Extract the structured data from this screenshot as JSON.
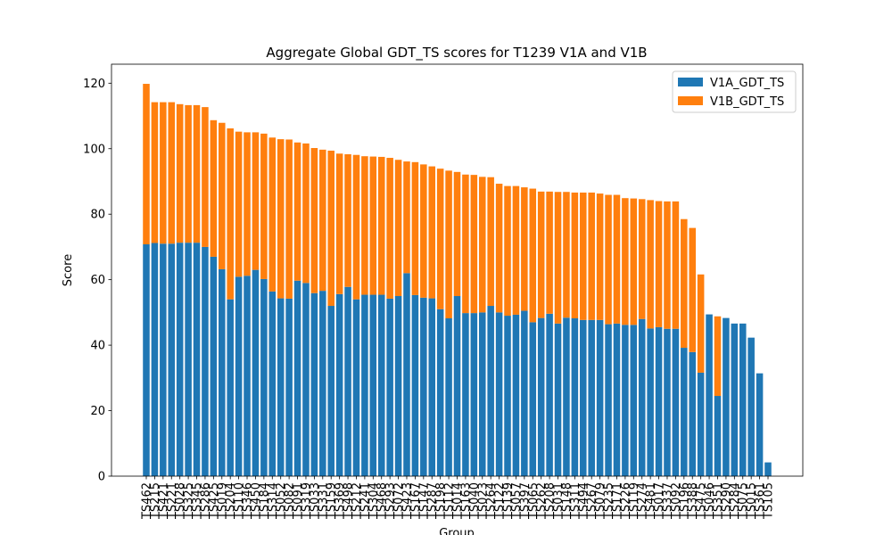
{
  "chart_data": {
    "type": "stacked_bar",
    "title": "Aggregate Global GDT_TS scores for T1239 V1A and V1B",
    "x_label": "Group",
    "y_label": "Score",
    "categories": [
      "TS462",
      "TS215",
      "TS421",
      "TS221",
      "TS028",
      "TS325",
      "TS345",
      "TS286",
      "TS425",
      "TS019",
      "TS204",
      "TS110",
      "TS346",
      "TS450",
      "TS184",
      "TS314",
      "TS052",
      "TS082",
      "TS091",
      "TS319",
      "TS033",
      "TS331",
      "TS159",
      "TS369",
      "TS498",
      "TS212",
      "TS241",
      "TS304",
      "TS468",
      "TS293",
      "TS072",
      "TS423",
      "TS167",
      "TS147",
      "TS287",
      "TS198",
      "TS112",
      "TS014",
      "TS163",
      "TS040",
      "TS023",
      "TS264",
      "TS122",
      "TS139",
      "TS057",
      "TS397",
      "TS065",
      "TS262",
      "TS208",
      "TS031",
      "TS148",
      "TS311",
      "TS494",
      "TS267",
      "TS079",
      "TS235",
      "TS171",
      "TS226",
      "TS119",
      "TS274",
      "TS481",
      "TS017",
      "TS337",
      "TS092",
      "TS196",
      "TS388",
      "TS475",
      "TS046",
      "TS351",
      "TS290",
      "TS284",
      "TS075",
      "TS015",
      "TS361",
      "TS105"
    ],
    "series": [
      {
        "name": "V1A_GDT_TS",
        "color": "#1f77b4",
        "values": [
          70.8,
          71.2,
          71.0,
          71.0,
          71.3,
          71.3,
          71.3,
          70.0,
          67.0,
          63.2,
          54.0,
          60.9,
          61.2,
          63.0,
          60.2,
          56.4,
          54.3,
          54.2,
          59.7,
          59.0,
          55.9,
          56.6,
          52.0,
          55.6,
          57.8,
          54.0,
          55.4,
          55.4,
          55.4,
          54.2,
          55.0,
          62.0,
          55.3,
          54.5,
          54.3,
          51.0,
          48.2,
          55.0,
          49.8,
          49.8,
          50.0,
          52.0,
          50.0,
          49.0,
          49.3,
          50.5,
          47.0,
          48.3,
          49.6,
          46.6,
          48.4,
          48.2,
          47.7,
          47.7,
          47.7,
          46.4,
          46.6,
          46.2,
          46.2,
          48.0,
          45.1,
          45.5,
          45.0,
          45.0,
          39.2,
          37.9,
          31.6,
          49.4,
          24.5,
          48.3,
          46.6,
          46.6,
          42.3,
          31.4,
          4.2
        ]
      },
      {
        "name": "V1B_GDT_TS",
        "color": "#ff7f0e",
        "values": [
          49.0,
          43.0,
          43.2,
          43.2,
          42.3,
          42.0,
          42.0,
          42.7,
          41.7,
          44.7,
          52.2,
          44.3,
          43.8,
          42.0,
          44.4,
          47.0,
          48.6,
          48.6,
          42.2,
          42.6,
          44.3,
          43.1,
          47.4,
          42.9,
          40.5,
          44.1,
          42.3,
          42.2,
          42.1,
          43.0,
          41.6,
          34.1,
          40.6,
          40.7,
          40.3,
          42.9,
          45.1,
          37.9,
          42.3,
          42.2,
          41.4,
          39.3,
          39.3,
          39.6,
          39.3,
          37.7,
          40.8,
          38.6,
          37.3,
          40.2,
          38.4,
          38.4,
          38.9,
          38.9,
          38.6,
          39.5,
          39.3,
          38.7,
          38.6,
          36.6,
          39.2,
          38.5,
          38.9,
          38.9,
          39.3,
          37.9,
          30.0,
          null,
          24.3,
          null,
          null,
          null,
          null,
          null,
          null
        ]
      }
    ],
    "ylim": [
      0,
      125.8
    ],
    "yticks": [
      0,
      20,
      40,
      60,
      80,
      100,
      120
    ],
    "legend": "upper right"
  }
}
